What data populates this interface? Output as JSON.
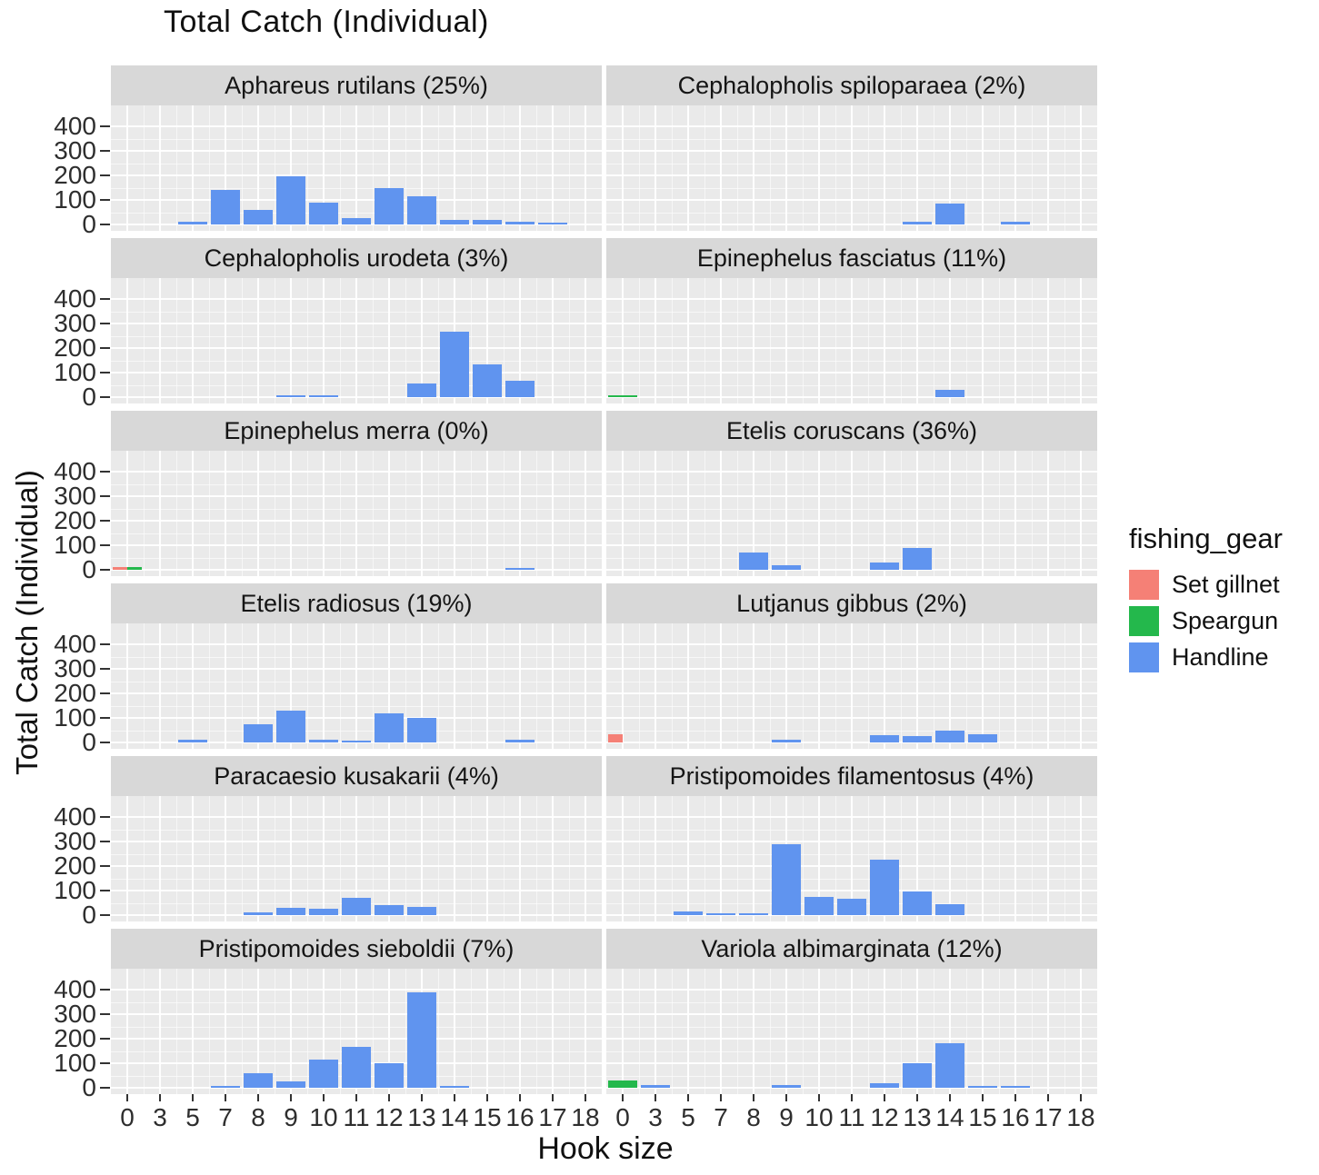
{
  "title": "Total Catch (Individual)",
  "x_axis_label": "Hook size",
  "y_axis_label": "Total Catch (Individual)",
  "legend": {
    "title": "fishing_gear",
    "position": "right",
    "items": [
      {
        "label": "Set gillnet",
        "color": "#F58076"
      },
      {
        "label": "Speargun",
        "color": "#24B84C"
      },
      {
        "label": "Handline",
        "color": "#6094EF"
      }
    ]
  },
  "colors": {
    "panel_background": "#eaeaea",
    "strip_background": "#d8d8d8",
    "gridline": "#ffffff"
  },
  "chart_data": {
    "type": "bar",
    "faceted": true,
    "facet_grid": {
      "rows": 6,
      "cols": 2
    },
    "title": "Total Catch (Individual)",
    "xlabel": "Hook size",
    "ylabel": "Total Catch (Individual)",
    "categories": [
      "0",
      "3",
      "5",
      "7",
      "8",
      "9",
      "10",
      "11",
      "12",
      "13",
      "14",
      "15",
      "16",
      "17",
      "18"
    ],
    "y_ticks": [
      0,
      100,
      200,
      300,
      400
    ],
    "ylim": [
      0,
      450
    ],
    "grid": true,
    "default_gear": "Handline",
    "legend_position": "right",
    "facets": [
      {
        "title": "Aphareus rutilans (25%)",
        "bars": [
          {
            "x": "5",
            "v": 10
          },
          {
            "x": "7",
            "v": 140
          },
          {
            "x": "8",
            "v": 60
          },
          {
            "x": "9",
            "v": 195
          },
          {
            "x": "10",
            "v": 90
          },
          {
            "x": "11",
            "v": 25
          },
          {
            "x": "12",
            "v": 150
          },
          {
            "x": "13",
            "v": 115
          },
          {
            "x": "14",
            "v": 20
          },
          {
            "x": "15",
            "v": 20
          },
          {
            "x": "16",
            "v": 12
          },
          {
            "x": "17",
            "v": 8
          }
        ]
      },
      {
        "title": "Cephalopholis spiloparaea (2%)",
        "bars": [
          {
            "x": "13",
            "v": 12
          },
          {
            "x": "14",
            "v": 85
          },
          {
            "x": "16",
            "v": 10
          }
        ]
      },
      {
        "title": "Cephalopholis urodeta (3%)",
        "bars": [
          {
            "x": "9",
            "v": 8
          },
          {
            "x": "10",
            "v": 8
          },
          {
            "x": "13",
            "v": 55
          },
          {
            "x": "14",
            "v": 265
          },
          {
            "x": "15",
            "v": 135
          },
          {
            "x": "16",
            "v": 65
          }
        ]
      },
      {
        "title": "Epinephelus fasciatus (11%)",
        "bars": [
          {
            "x": "0",
            "gear": "Speargun",
            "v": 8
          },
          {
            "x": "14",
            "v": 30
          }
        ]
      },
      {
        "title": "Epinephelus merra (0%)",
        "bars": [
          {
            "x": "0",
            "gear": "Set gillnet",
            "v": 12,
            "pos": "left"
          },
          {
            "x": "0",
            "gear": "Speargun",
            "v": 12,
            "pos": "right"
          },
          {
            "x": "16",
            "v": 8
          }
        ]
      },
      {
        "title": "Etelis coruscans (36%)",
        "bars": [
          {
            "x": "8",
            "v": 70
          },
          {
            "x": "9",
            "v": 18
          },
          {
            "x": "12",
            "v": 30
          },
          {
            "x": "13",
            "v": 90
          }
        ]
      },
      {
        "title": "Etelis radiosus (19%)",
        "bars": [
          {
            "x": "5",
            "v": 10
          },
          {
            "x": "8",
            "v": 75
          },
          {
            "x": "9",
            "v": 130
          },
          {
            "x": "10",
            "v": 10
          },
          {
            "x": "11",
            "v": 8
          },
          {
            "x": "12",
            "v": 120
          },
          {
            "x": "13",
            "v": 100
          },
          {
            "x": "16",
            "v": 10
          }
        ]
      },
      {
        "title": "Lutjanus gibbus (2%)",
        "bars": [
          {
            "x": "0",
            "gear": "Set gillnet",
            "v": 35,
            "pos": "left"
          },
          {
            "x": "9",
            "v": 12
          },
          {
            "x": "12",
            "v": 30
          },
          {
            "x": "13",
            "v": 25
          },
          {
            "x": "14",
            "v": 50
          },
          {
            "x": "15",
            "v": 35
          }
        ]
      },
      {
        "title": "Paracaesio kusakarii (4%)",
        "bars": [
          {
            "x": "8",
            "v": 12
          },
          {
            "x": "9",
            "v": 30
          },
          {
            "x": "10",
            "v": 25
          },
          {
            "x": "11",
            "v": 70
          },
          {
            "x": "12",
            "v": 40
          },
          {
            "x": "13",
            "v": 35
          }
        ]
      },
      {
        "title": "Pristipomoides filamentosus (4%)",
        "bars": [
          {
            "x": "5",
            "v": 15
          },
          {
            "x": "7",
            "v": 6
          },
          {
            "x": "8",
            "v": 6
          },
          {
            "x": "9",
            "v": 290
          },
          {
            "x": "10",
            "v": 75
          },
          {
            "x": "11",
            "v": 65
          },
          {
            "x": "12",
            "v": 225
          },
          {
            "x": "13",
            "v": 95
          },
          {
            "x": "14",
            "v": 45
          }
        ]
      },
      {
        "title": "Pristipomoides sieboldii (7%)",
        "bars": [
          {
            "x": "7",
            "v": 8
          },
          {
            "x": "8",
            "v": 60
          },
          {
            "x": "9",
            "v": 25
          },
          {
            "x": "10",
            "v": 115
          },
          {
            "x": "11",
            "v": 165
          },
          {
            "x": "12",
            "v": 100
          },
          {
            "x": "13",
            "v": 390
          },
          {
            "x": "14",
            "v": 8
          }
        ]
      },
      {
        "title": "Variola albimarginata (12%)",
        "bars": [
          {
            "x": "0",
            "gear": "Speargun",
            "v": 30
          },
          {
            "x": "3",
            "v": 12
          },
          {
            "x": "9",
            "v": 12
          },
          {
            "x": "12",
            "v": 18
          },
          {
            "x": "13",
            "v": 100
          },
          {
            "x": "14",
            "v": 180
          },
          {
            "x": "15",
            "v": 8
          },
          {
            "x": "16",
            "v": 8
          }
        ]
      }
    ]
  }
}
